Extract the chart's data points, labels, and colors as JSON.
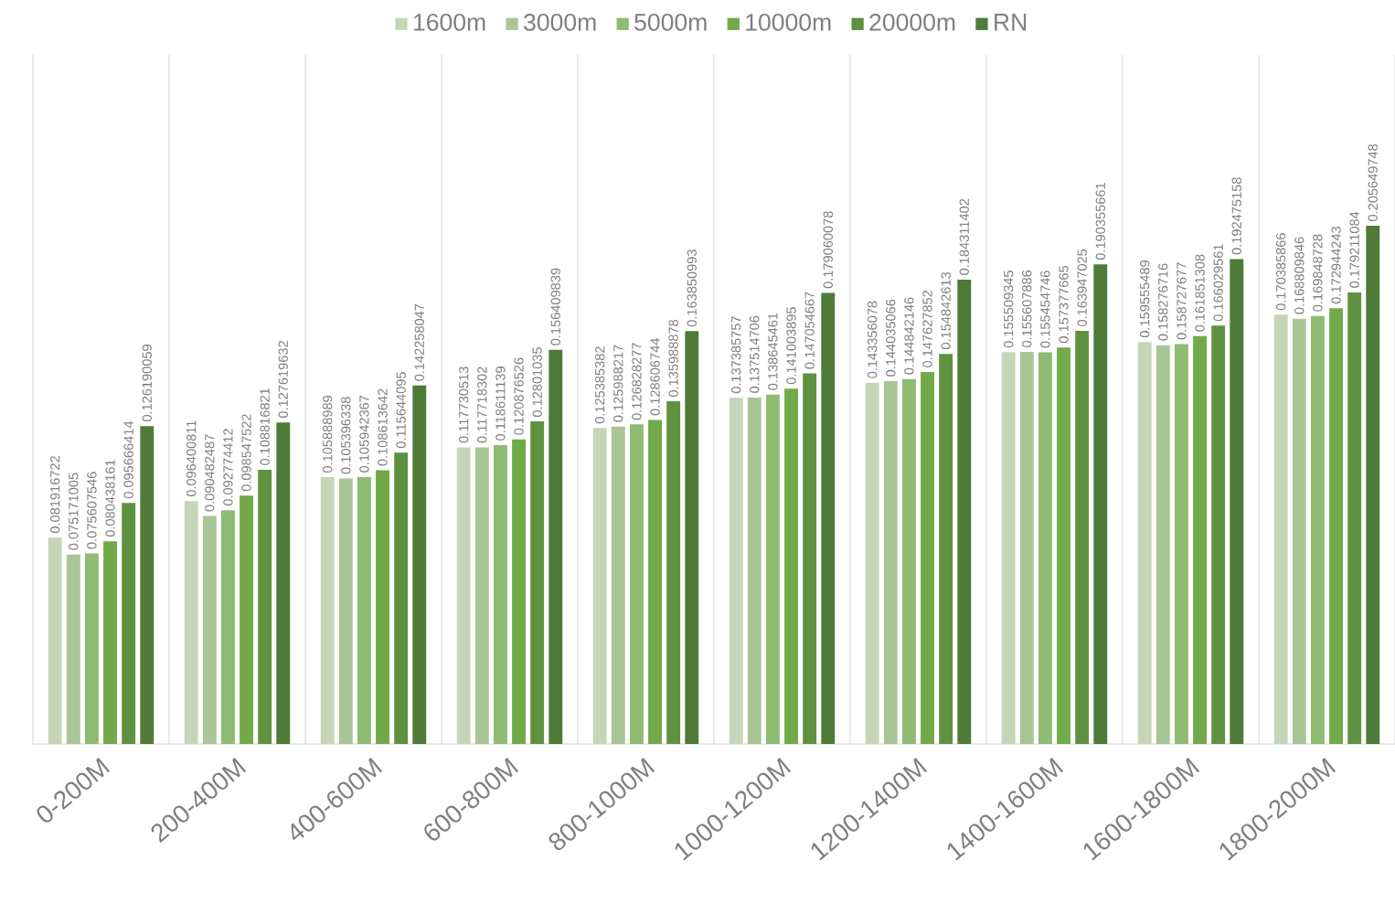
{
  "chart_data": {
    "type": "bar",
    "categories": [
      "0-200M",
      "200-400M",
      "400-600M",
      "600-800M",
      "800-1000M",
      "1000-1200M",
      "1200-1400M",
      "1400-1600M",
      "1600-1800M",
      "1800-2000M"
    ],
    "series": [
      {
        "name": "1600m",
        "color": "#c5d6b8",
        "values": [
          0.081916722,
          0.096400811,
          0.105888989,
          0.117730513,
          0.125385382,
          0.137385757,
          0.143356078,
          0.155509345,
          0.159555489,
          0.170385866
        ]
      },
      {
        "name": "3000m",
        "color": "#a9c596",
        "values": [
          0.075171005,
          0.090482487,
          0.105396338,
          0.117718302,
          0.125988217,
          0.137514706,
          0.144035066,
          0.155607886,
          0.158276716,
          0.168809846
        ]
      },
      {
        "name": "5000m",
        "color": "#8fbb72",
        "values": [
          0.075607546,
          0.092774412,
          0.105942367,
          0.118611139,
          0.126828277,
          0.138645461,
          0.144842146,
          0.155454746,
          0.158727677,
          0.169848728
        ]
      },
      {
        "name": "10000m",
        "color": "#72aa4a",
        "values": [
          0.080438161,
          0.098547522,
          0.108613642,
          0.120876526,
          0.128606744,
          0.141003895,
          0.147627852,
          0.157377665,
          0.161851308,
          0.172944243
        ]
      },
      {
        "name": "20000m",
        "color": "#5f9240",
        "values": [
          0.095666414,
          0.108816821,
          0.115644095,
          0.12801035,
          0.135988878,
          0.147054667,
          0.154842613,
          0.163947025,
          0.166029561,
          0.179211084
        ]
      },
      {
        "name": "RN",
        "color": "#4f7a38",
        "values": [
          0.126190059,
          0.127619632,
          0.142258047,
          0.156409839,
          0.163850993,
          0.179060078,
          0.184311402,
          0.190355661,
          0.192475158,
          0.205649748
        ]
      }
    ],
    "data_labels": true,
    "legend": "top",
    "grid": "x"
  }
}
